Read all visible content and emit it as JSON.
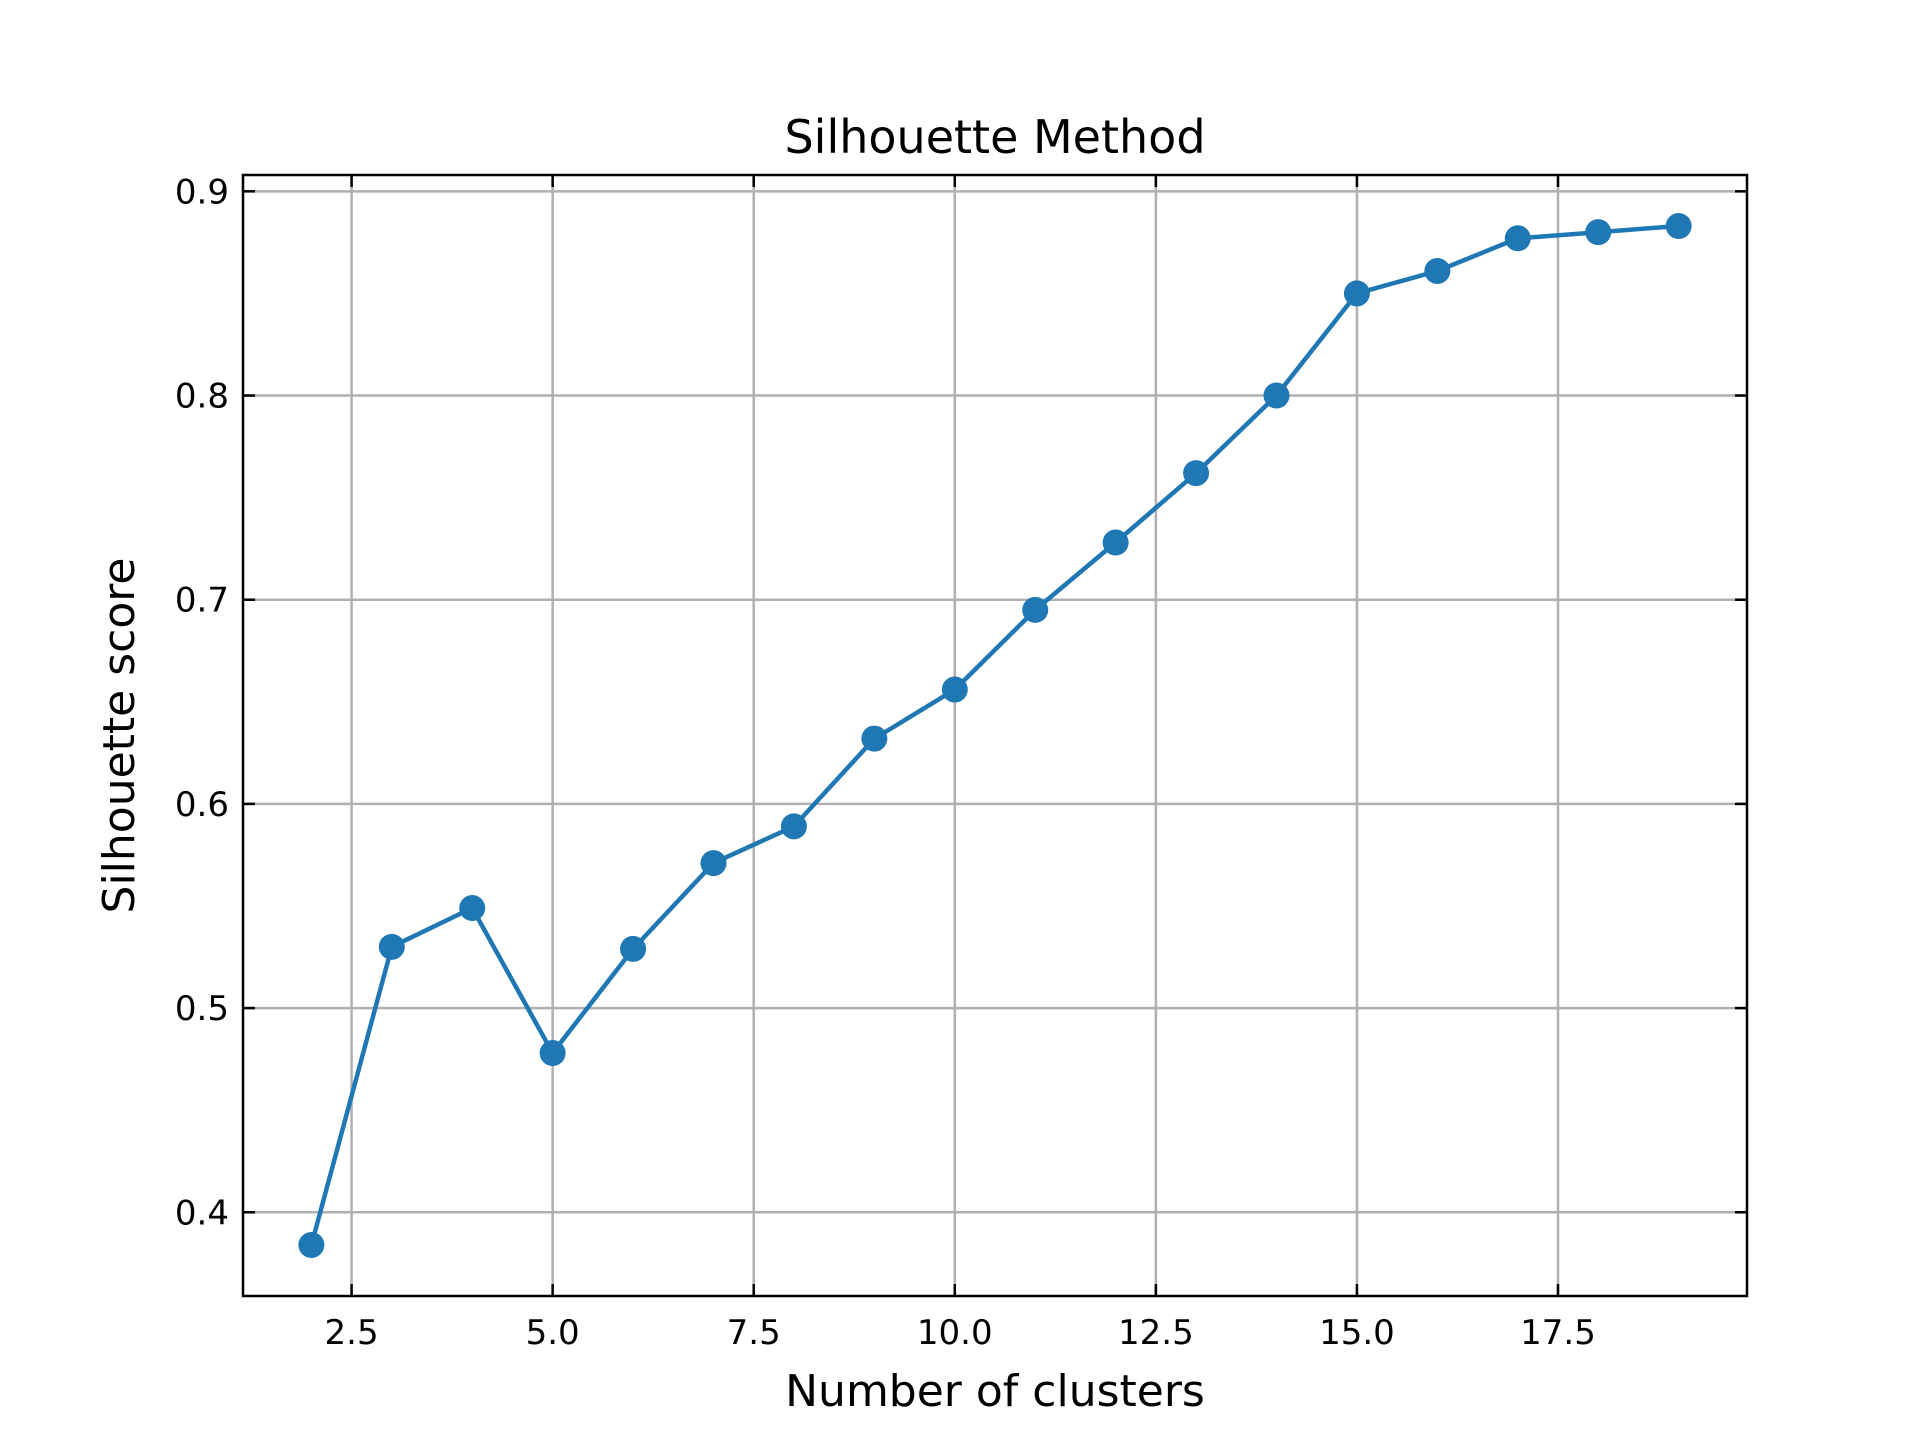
{
  "chart_data": {
    "type": "line",
    "title": "Silhouette Method",
    "xlabel": "Number of clusters",
    "ylabel": "Silhouette score",
    "x": [
      2,
      3,
      4,
      5,
      6,
      7,
      8,
      9,
      10,
      11,
      12,
      13,
      14,
      15,
      16,
      17,
      18,
      19
    ],
    "series": [
      {
        "values": [
          0.384,
          0.53,
          0.549,
          0.478,
          0.529,
          0.571,
          0.589,
          0.632,
          0.656,
          0.695,
          0.728,
          0.762,
          0.8,
          0.85,
          0.861,
          0.877,
          0.88,
          0.883
        ],
        "color": "#1f77b4"
      }
    ],
    "xlim": [
      1.15,
      19.85
    ],
    "ylim": [
      0.359,
      0.908
    ],
    "xticks": [
      2.5,
      5.0,
      7.5,
      10.0,
      12.5,
      15.0,
      17.5
    ],
    "xtick_labels": [
      "2.5",
      "5.0",
      "7.5",
      "10.0",
      "12.5",
      "15.0",
      "17.5"
    ],
    "yticks": [
      0.4,
      0.5,
      0.6,
      0.7,
      0.8,
      0.9
    ],
    "ytick_labels": [
      "0.4",
      "0.5",
      "0.6",
      "0.7",
      "0.8",
      "0.9"
    ],
    "grid": true,
    "grid_color": "#b0b0b0",
    "legend": "none"
  }
}
